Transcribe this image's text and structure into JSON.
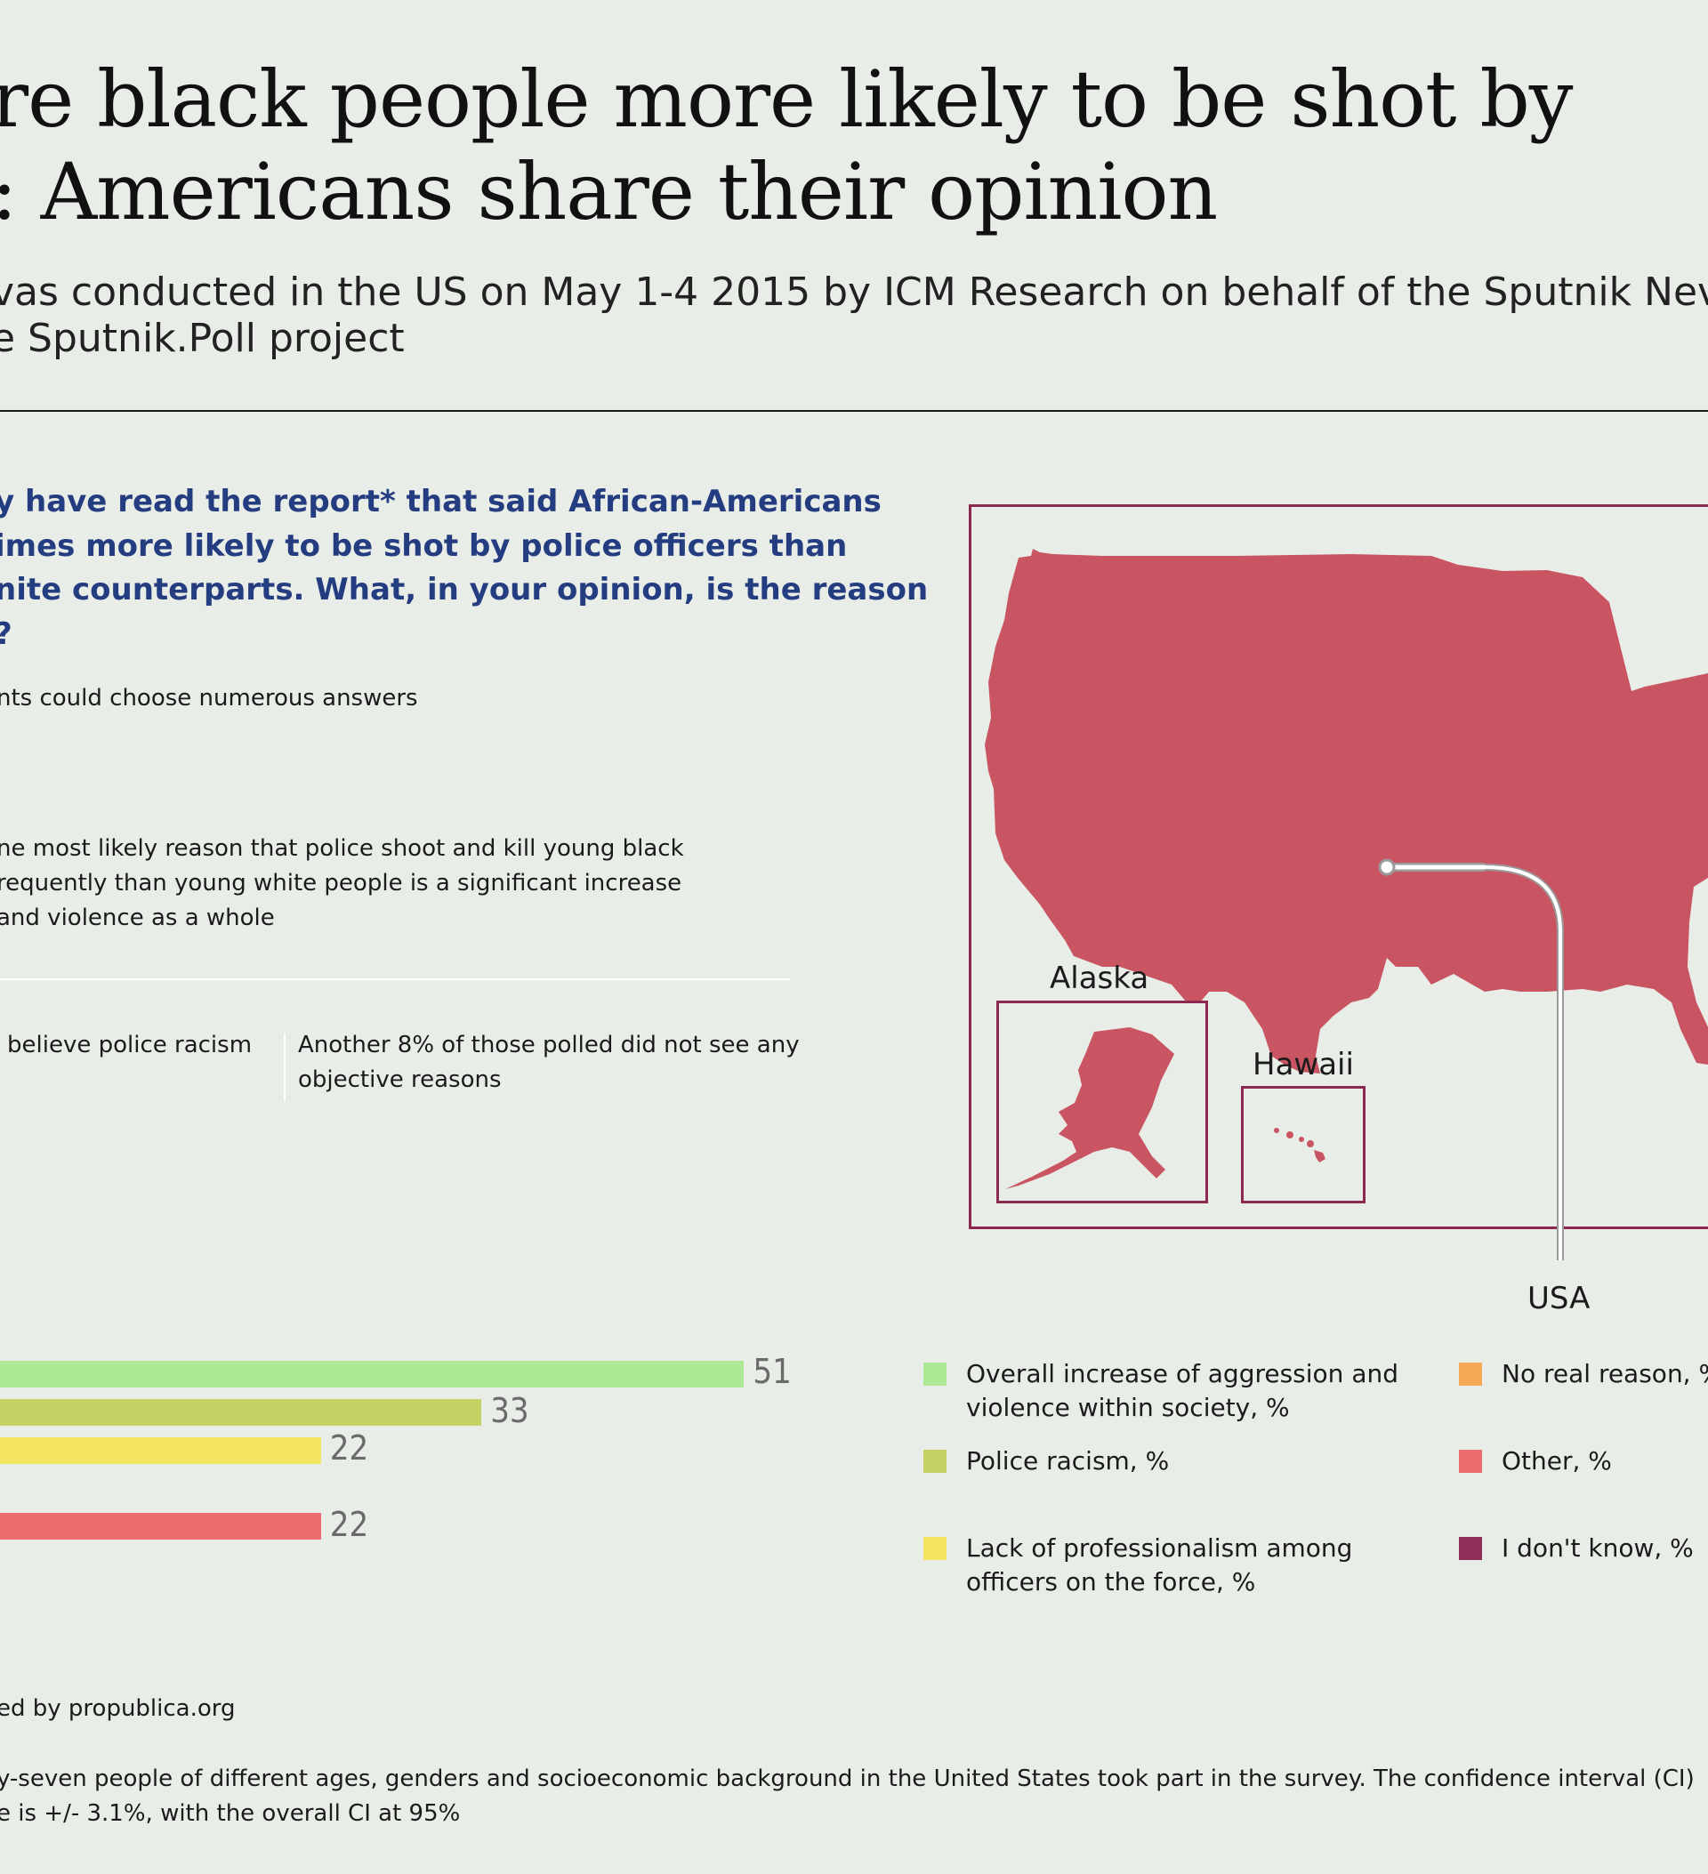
{
  "title": {
    "line1": "re black people more likely to be shot by",
    "line2": ": Americans share their opinion"
  },
  "subtitle": {
    "line1": "vas conducted in the US on May 1-4 2015 by ICM Research on behalf of the Sputnik Nev",
    "line2": "e Sputnik.Poll project"
  },
  "question": {
    "line1": "y have read the report* that said African-Americans",
    "line2": "imes more likely to be shot by police officers than",
    "line3": "nite counterparts. What, in your opinion, is the reason",
    "line4": "?"
  },
  "respondents_note": "nts could choose numerous answers",
  "finding": {
    "line1": "ne most likely reason that police shoot and kill young black",
    "line2": "requently than young white people is a significant increase",
    "line3": "and violence as a whole"
  },
  "fact_left": "believe police racism",
  "fact_right": {
    "line1": "Another 8% of those polled did not see any",
    "line2": "objective reasons"
  },
  "map": {
    "fill_color": "#c95562",
    "frame_color": "#8e2850",
    "labels": {
      "alaska": "Alaska",
      "hawaii": "Hawaii",
      "usa": "USA"
    }
  },
  "chart_data": {
    "type": "bar",
    "orientation": "horizontal",
    "series": [
      {
        "name": "Overall increase of aggression and violence within society, %",
        "value": 51,
        "color": "#ade894"
      },
      {
        "name": "Police racism, %",
        "value": 33,
        "color": "#c4d264"
      },
      {
        "name": "Lack of professionalism among officers on the force, %",
        "value": 22,
        "color": "#f3e462"
      },
      {
        "name": "No real reason, %",
        "value": null,
        "color": "#f6a857"
      },
      {
        "name": "Other, %",
        "value": 22,
        "color": "#ec6b6d"
      },
      {
        "name": "I don't know, %",
        "value": null,
        "color": "#8e2f5a"
      }
    ],
    "data_labels": [
      "51",
      "33",
      "22",
      "22"
    ]
  },
  "legend": [
    {
      "line1": "Overall increase of aggression and",
      "line2": "violence within society, %",
      "color": "#ade894"
    },
    {
      "line1": "Police racism, %",
      "line2": "",
      "color": "#c4d264"
    },
    {
      "line1": "Lack of professionalism among",
      "line2": "officers on the force, %",
      "color": "#f3e462"
    },
    {
      "line1": "No real reason, %",
      "line2": "",
      "color": "#f6a857"
    },
    {
      "line1": "Other, %",
      "line2": "",
      "color": "#ec6b6d"
    },
    {
      "line1": "I don't know, %",
      "line2": "",
      "color": "#8e2f5a"
    }
  ],
  "source": "ed by propublica.org",
  "footnote": {
    "line1": "y-seven people of different ages, genders and socioeconomic background in the United States took part in the survey. The confidence interval (CI)",
    "line2": "e is +/- 3.1%, with the overall CI at 95%"
  }
}
